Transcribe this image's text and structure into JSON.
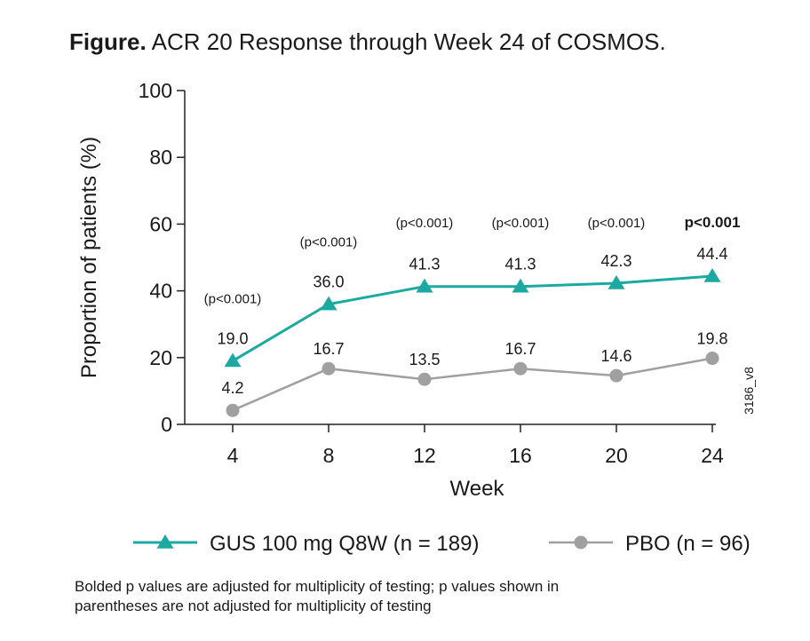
{
  "figure": {
    "title_prefix": "Figure.",
    "title": "ACR 20 Response through Week 24 of COSMOS.",
    "footnote_line1": "Bolded p values are adjusted for multiplicity of testing; p values shown in",
    "footnote_line2": "parentheses are not adjusted for multiplicity of testing",
    "side_code": "3186_v8"
  },
  "chart_data": {
    "type": "line",
    "title": "ACR 20 Response through Week 24 of COSMOS.",
    "xlabel": "Week",
    "ylabel": "Proportion of patients (%)",
    "x": [
      4,
      8,
      12,
      16,
      20,
      24
    ],
    "x_tick_labels": [
      "4",
      "8",
      "12",
      "16",
      "20",
      "24"
    ],
    "ylim": [
      0,
      100
    ],
    "y_ticks": [
      0,
      20,
      40,
      60,
      80,
      100
    ],
    "grid": false,
    "legend_position": "bottom",
    "series": [
      {
        "name": "GUS 100 mg Q8W (n = 189)",
        "marker": "triangle",
        "color": "#1ba9a1",
        "values": [
          19.0,
          36.0,
          41.3,
          41.3,
          42.3,
          44.4
        ],
        "data_labels": [
          "19.0",
          "36.0",
          "41.3",
          "41.3",
          "42.3",
          "44.4"
        ]
      },
      {
        "name": "PBO (n = 96)",
        "marker": "circle",
        "color": "#a0a0a0",
        "values": [
          4.2,
          16.7,
          13.5,
          16.7,
          14.6,
          19.8
        ],
        "data_labels": [
          "4.2",
          "16.7",
          "13.5",
          "16.7",
          "14.6",
          "19.8"
        ]
      }
    ],
    "annotations": [
      {
        "x": 4,
        "text": "(p<0.001)",
        "bold": false
      },
      {
        "x": 8,
        "text": "(p<0.001)",
        "bold": false
      },
      {
        "x": 12,
        "text": "(p<0.001)",
        "bold": false
      },
      {
        "x": 16,
        "text": "(p<0.001)",
        "bold": false
      },
      {
        "x": 20,
        "text": "(p<0.001)",
        "bold": false
      },
      {
        "x": 24,
        "text": "p<0.001",
        "bold": true
      }
    ]
  }
}
